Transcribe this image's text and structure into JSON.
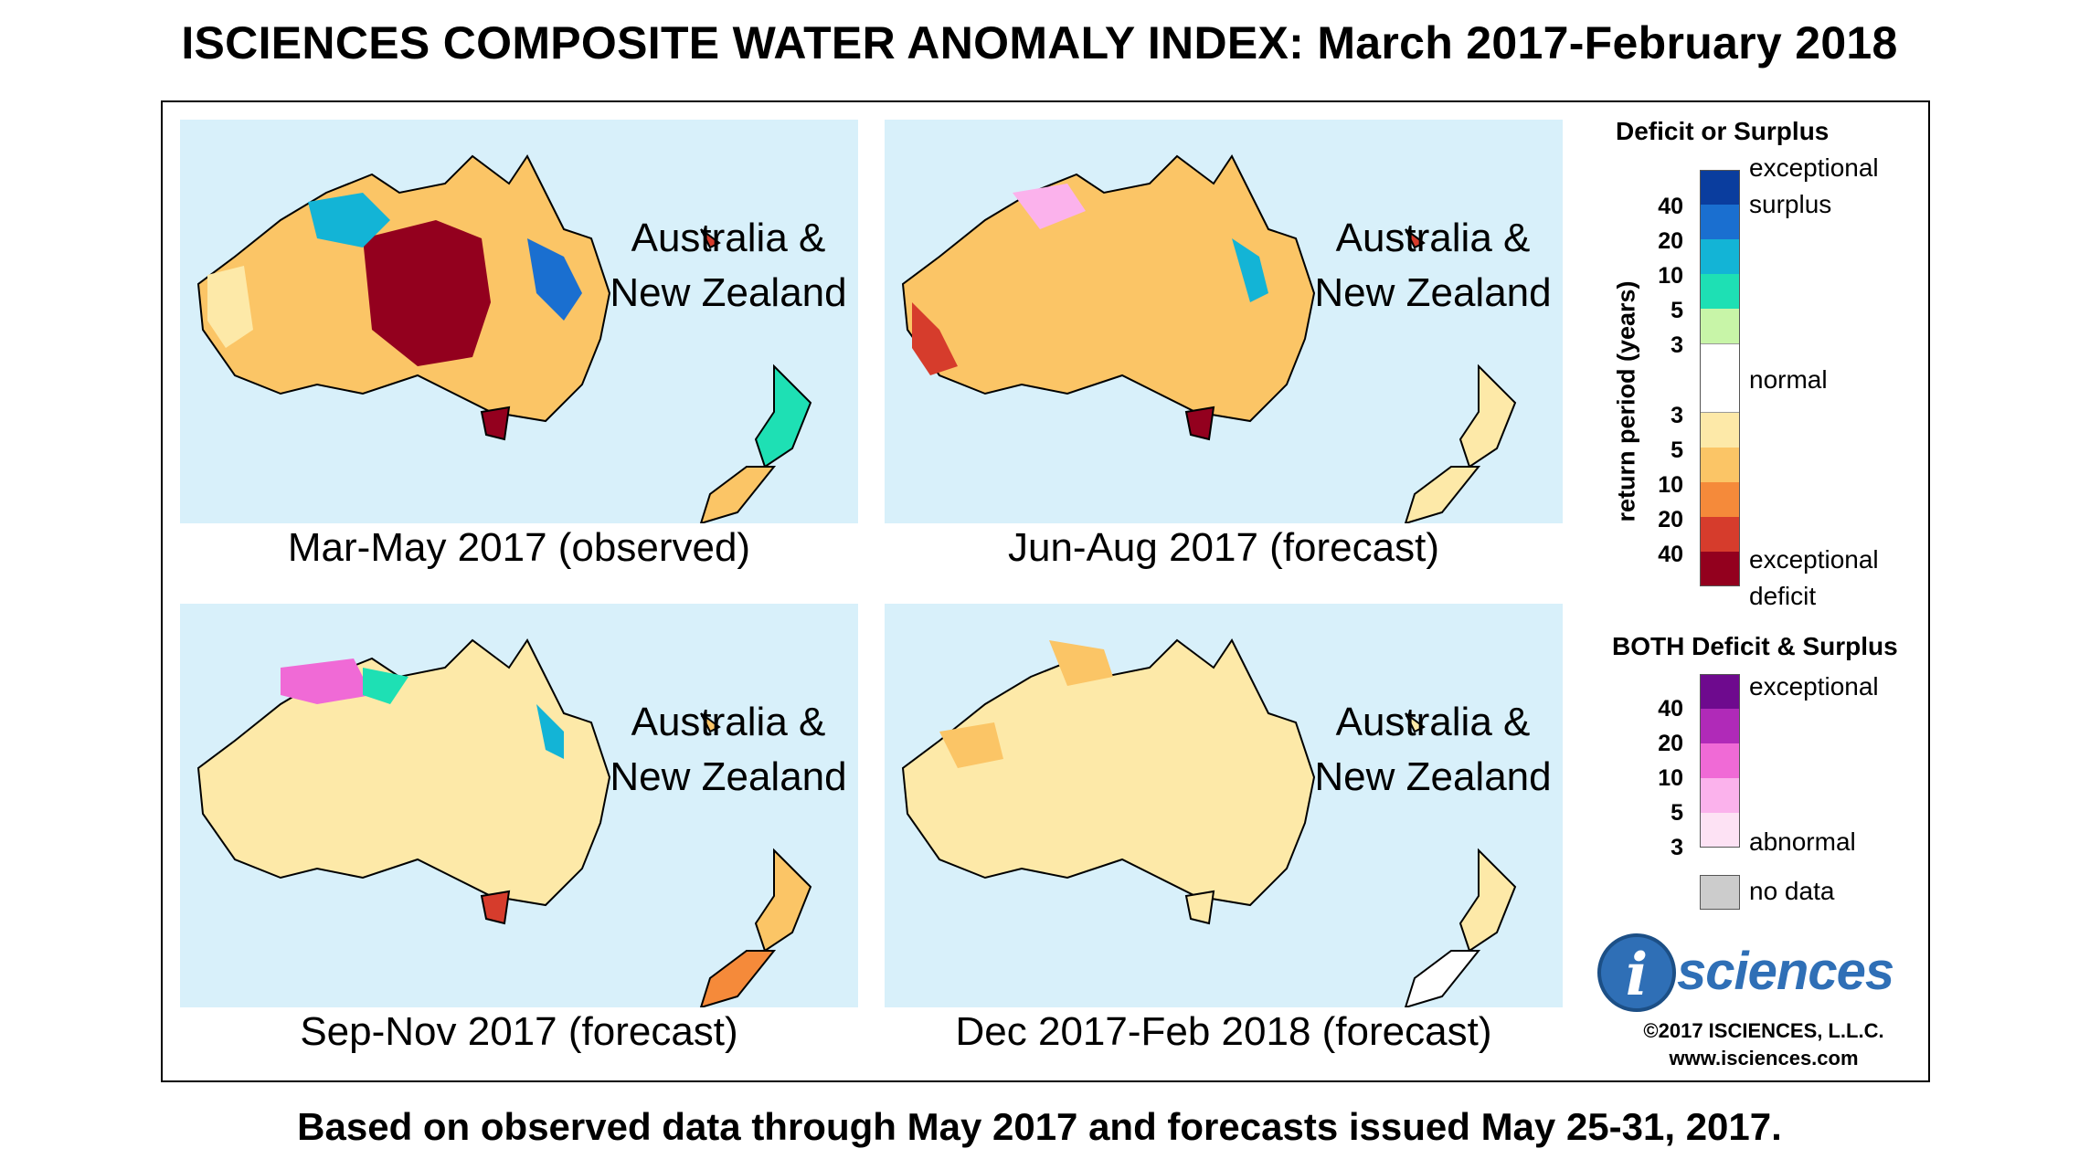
{
  "title": "ISCIENCES COMPOSITE WATER ANOMALY INDEX: March 2017-February 2018",
  "footer": "Based on observed data through May 2017 and forecasts issued May 25-31, 2017.",
  "panels": [
    {
      "region_line1": "Australia &",
      "region_line2": "New Zealand",
      "caption": "Mar-May 2017 (observed)"
    },
    {
      "region_line1": "Australia &",
      "region_line2": "New Zealand",
      "caption": "Jun-Aug 2017 (forecast)"
    },
    {
      "region_line1": "Australia &",
      "region_line2": "New Zealand",
      "caption": "Sep-Nov 2017 (forecast)"
    },
    {
      "region_line1": "Australia &",
      "region_line2": "New Zealand",
      "caption": "Dec 2017-Feb 2018 (forecast)"
    }
  ],
  "legend": {
    "deficit_surplus_heading": "Deficit or Surplus",
    "axis_label": "return period (years)",
    "surplus_ticks": [
      "40",
      "20",
      "10",
      "5",
      "3"
    ],
    "deficit_ticks": [
      "3",
      "5",
      "10",
      "20",
      "40"
    ],
    "label_exceptional_surplus_1": "exceptional",
    "label_exceptional_surplus_2": "surplus",
    "label_normal": "normal",
    "label_exceptional_deficit_1": "exceptional",
    "label_exceptional_deficit_2": "deficit",
    "both_heading": "BOTH Deficit & Surplus",
    "both_ticks": [
      "40",
      "20",
      "10",
      "5",
      "3"
    ],
    "label_both_exceptional": "exceptional",
    "label_both_abnormal": "abnormal",
    "label_no_data": "no data",
    "surplus_colors": [
      "#0a3d9e",
      "#1a6fd0",
      "#13b4d6",
      "#1ee0b4",
      "#c8f5a8"
    ],
    "normal_color": "#ffffff",
    "deficit_colors": [
      "#fde9a8",
      "#fbc566",
      "#f58a3a",
      "#d63c2c",
      "#93001e"
    ],
    "both_colors": [
      "#6e0a8e",
      "#b02ab8",
      "#f06ad6",
      "#fbb2ec",
      "#fde2f4"
    ],
    "no_data_color": "#cccccc"
  },
  "logo": {
    "letter": "i",
    "text": "sciences"
  },
  "copyright": "©2017 ISCIENCES, L.L.C.",
  "website": "www.isciences.com"
}
